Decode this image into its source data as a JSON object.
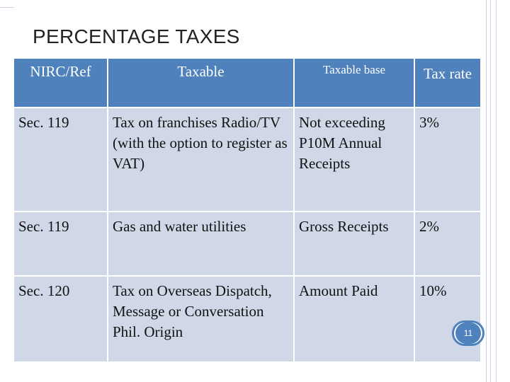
{
  "slide": {
    "title": "PERCENTAGE TAXES",
    "page_number": "11"
  },
  "table": {
    "headers": {
      "ref": "NIRC/Ref",
      "taxable": "Taxable",
      "base": "Taxable base",
      "rate": "Tax rate"
    },
    "rows": [
      {
        "ref": "Sec. 119",
        "taxable": "Tax on franchises Radio/TV (with the option to register as VAT)",
        "base": "Not exceeding P10M Annual Receipts",
        "rate": "3%"
      },
      {
        "ref": "Sec. 119",
        "taxable": "Gas and water utilities",
        "base": "Gross Receipts",
        "rate": "2%"
      },
      {
        "ref": "Sec. 120",
        "taxable": "Tax on Overseas Dispatch, Message or Conversation Phil. Origin",
        "base": "Amount Paid",
        "rate": "10%"
      }
    ]
  },
  "colors": {
    "header_bg": "#4f81bd",
    "cell_bg": "#d0d8e8"
  }
}
